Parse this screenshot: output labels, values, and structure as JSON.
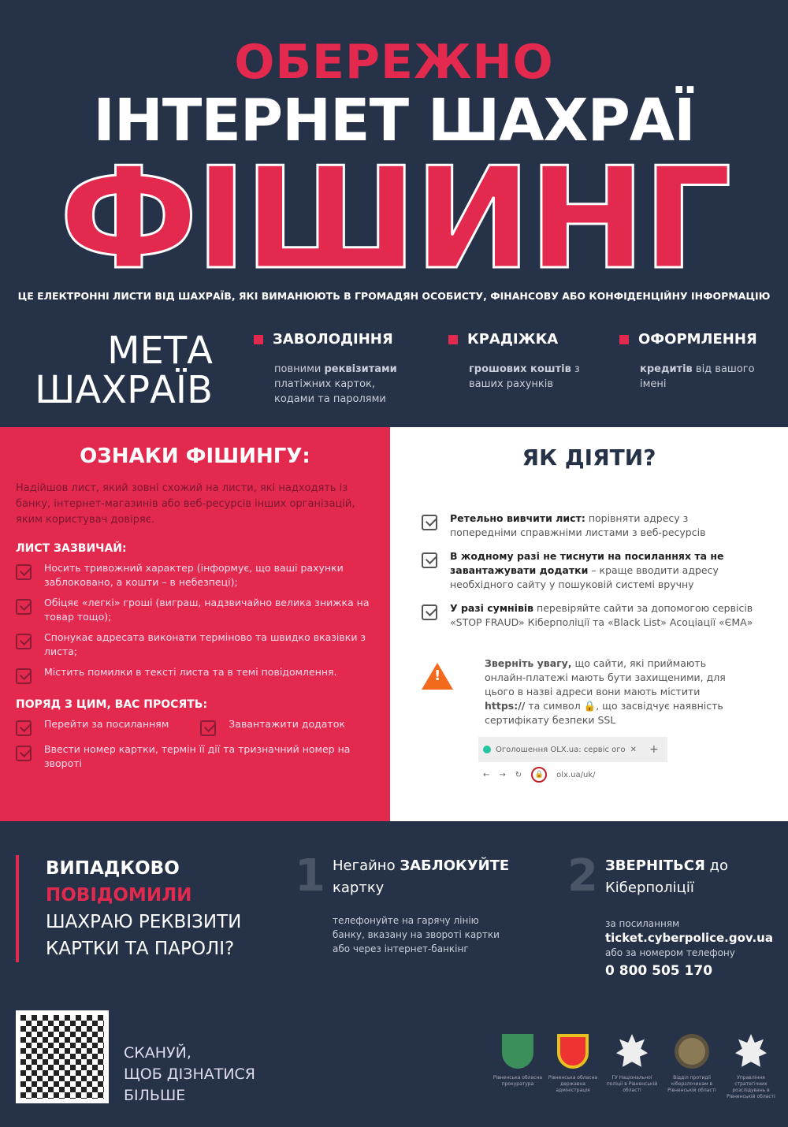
{
  "header": {
    "warning": "ОБЕРЕЖНО",
    "title": "ІНТЕРНЕТ ШАХРАЇ",
    "headline": "ФІШИНГ",
    "subtitle": "ЦЕ ЕЛЕКТРОННІ ЛИСТИ ВІД ШАХРАЇВ, ЯКІ ВИМАНЮЮТЬ В ГРОМАДЯН ОСОБИСТУ, ФІНАНСОВУ АБО КОНФІДЕНЦІЙНУ ІНФОРМАЦІЮ"
  },
  "goals": {
    "title_line1": "МЕТА",
    "title_line2": "ШАХРАЇВ",
    "items": [
      {
        "title": "ЗАВОЛОДІННЯ",
        "pre": "повними ",
        "bold": "реквізитами",
        "post": " платіжних карток, кодами та паролями"
      },
      {
        "title": "КРАДІЖКА",
        "pre": "",
        "bold": "грошових коштів",
        "post": " з ваших рахунків"
      },
      {
        "title": "ОФОРМЛЕННЯ",
        "pre": "",
        "bold": "кредитів",
        "post": " від вашого імені"
      }
    ]
  },
  "signs": {
    "title": "ОЗНАКИ ФІШИНГУ:",
    "intro": "Надійшов лист, який зовні схожий на листи, які надходять із банку, інтернет-магазинів або веб-ресурсів інших організацій, яким користувач довіряє.",
    "usually_title": "ЛИСТ ЗАЗВИЧАЙ:",
    "usually": [
      "Носить тривожний характер (інформує, що ваші рахунки заблоковано, а кошти – в небезпеці);",
      "Обіцяє «легкі» гроші (виграш, надзвичайно велика знижка на товар тощо);",
      "Спонукає адресата виконати терміново та швидко вказівки з листа;",
      "Містить помилки в тексті листа та в темі повідомлення."
    ],
    "asks_title": "ПОРЯД З ЦИМ, ВАС ПРОСЯТЬ:",
    "asks": [
      "Перейти за посиланням",
      "Завантажити додаток",
      "Ввести номер картки, термін її дії та тризначний номер на звороті"
    ]
  },
  "actions": {
    "title": "ЯК ДІЯТИ?",
    "items": [
      {
        "bold": "Ретельно вивчити лист:",
        "text": " порівняти адресу з попередніми справжніми листами з веб-ресурсів"
      },
      {
        "bold": "В жодному разі не тиснути на посиланнях та не завантажувати додатки",
        "text": " – краще вводити адресу необхідного сайту у пошуковій системі вручну"
      },
      {
        "bold": "У разі сумнівів",
        "text": " перевіряйте сайти за допомогою сервісів «STOP FRAUD» Кіберполіції та «Black List» Асоціації «ЄМА»"
      }
    ],
    "warning": {
      "bold": "Зверніть увагу,",
      "text1": " що сайти, які приймають онлайн-платежі мають бути захищеними, для цього в назві адреси вони мають містити ",
      "https": "https://",
      "text2": " та символ 🔒, що засвідчує наявність сертифікату безпеки SSL"
    },
    "browser": {
      "tab": "Оголошення OLX.ua: сервіс ого",
      "close": "✕",
      "plus": "+",
      "url": "olx.ua/uk/"
    }
  },
  "bottom": {
    "q1": "ВИПАДКОВО",
    "q2": "ПОВІДОМИЛИ",
    "q3": "ШАХРАЮ РЕКВІЗИТИ",
    "q4": "КАРТКИ ТА ПАРОЛІ?",
    "step1": {
      "num": "1",
      "pre": "Негайно ",
      "bold": "ЗАБЛОКУЙТЕ",
      "post": " картку",
      "text": "телефонуйте на гарячу лінію банку, вказану на звороті картки або через інтернет-банкінг"
    },
    "step2": {
      "num": "2",
      "bold": "ЗВЕРНІТЬСЯ",
      "post": " до Кіберполіції",
      "text1": "за посиланням",
      "link": "ticket.cyberpolice.gov.ua",
      "text2": "або за номером телефону",
      "phone": "0 800 505 170"
    }
  },
  "footer": {
    "scan": [
      "СКАНУЙ,",
      "ЩОБ ДІЗНАТИСЯ",
      "БІЛЬШЕ"
    ],
    "logos": [
      "Рівненська обласна прокуратура",
      "Рівненська обласна державна адміністрація",
      "ГУ Національної поліції в Рівненській області",
      "Відділ протидії кіберзлочинам в Рівненській області",
      "Управління стратегічних розслідувань в Рівненській області"
    ]
  },
  "colors": {
    "background": "#263247",
    "accent": "#e4294f",
    "warning": "#f26b1d"
  }
}
